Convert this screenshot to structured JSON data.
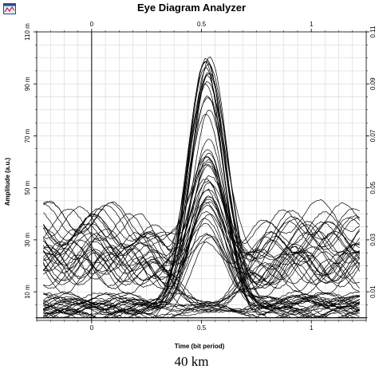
{
  "window": {
    "title": "Eye Diagram Analyzer",
    "icon": "eye-diagram-analyzer-app-icon"
  },
  "caption": "40 km",
  "chart_data": {
    "type": "line",
    "title": "Eye Diagram Analyzer",
    "xlabel": "Time (bit period)",
    "ylabel": "Amplitude (a.u.)",
    "x_ticks": [
      "0",
      "0.5",
      "1"
    ],
    "x_top_ticks": [
      "0",
      "0.5",
      "1"
    ],
    "y_left_ticks": [
      "10 m",
      "30 m",
      "50 m",
      "70 m",
      "90 m",
      "110 m"
    ],
    "y_right_ticks": [
      "0.01",
      "0.03",
      "0.05",
      "0.07",
      "0.09",
      "0.11"
    ],
    "xlim": [
      -0.25,
      1.25
    ],
    "ylim": [
      -0.001,
      0.11
    ],
    "grid": true,
    "trace_count": 60,
    "one_level_peaks_approx": [
      0.093,
      0.1,
      0.088,
      0.065,
      0.06,
      0.055,
      0.05,
      0.045,
      0.04,
      0.03
    ],
    "one_level_peak_time_approx": 0.53,
    "zero_level_upper_band_approx": [
      0.015,
      0.04
    ],
    "zero_level_lower_band_approx": [
      0.0,
      0.008
    ]
  }
}
